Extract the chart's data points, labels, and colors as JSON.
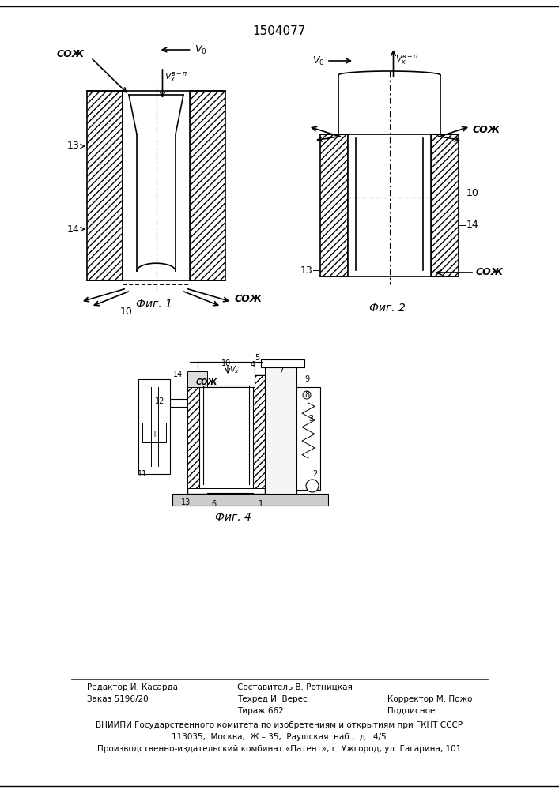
{
  "title": "1504077",
  "fig1_label": "Фиг. 1",
  "fig2_label": "Фиг. 2",
  "fig4_label": "Фиг. 4",
  "soj": "СОЖ",
  "bg_color": "#ffffff",
  "lc": "#000000",
  "footer": [
    [
      110,
      0,
      "Редактор И. Касарда"
    ],
    [
      110,
      14,
      "Заказ 5196/20"
    ],
    [
      280,
      0,
      "Составитель В. Ротницкая"
    ],
    [
      280,
      14,
      "Техред И. Верес"
    ],
    [
      280,
      28,
      "Тираж 662"
    ],
    [
      470,
      14,
      "Корректор М. Пожо"
    ],
    [
      470,
      28,
      "Подписное"
    ]
  ],
  "inst1": "ВНИИПИ Государственного комитета по изобретениям и открытиям при ГКНТ СССР",
  "inst2": "113035,  Москва,  Ж – 35,  Раушская  наб.,  д.  4/5",
  "inst3": "Производственно-издательский комбинат «Патент», г. Ужгород, ул. Гагарина, 101"
}
